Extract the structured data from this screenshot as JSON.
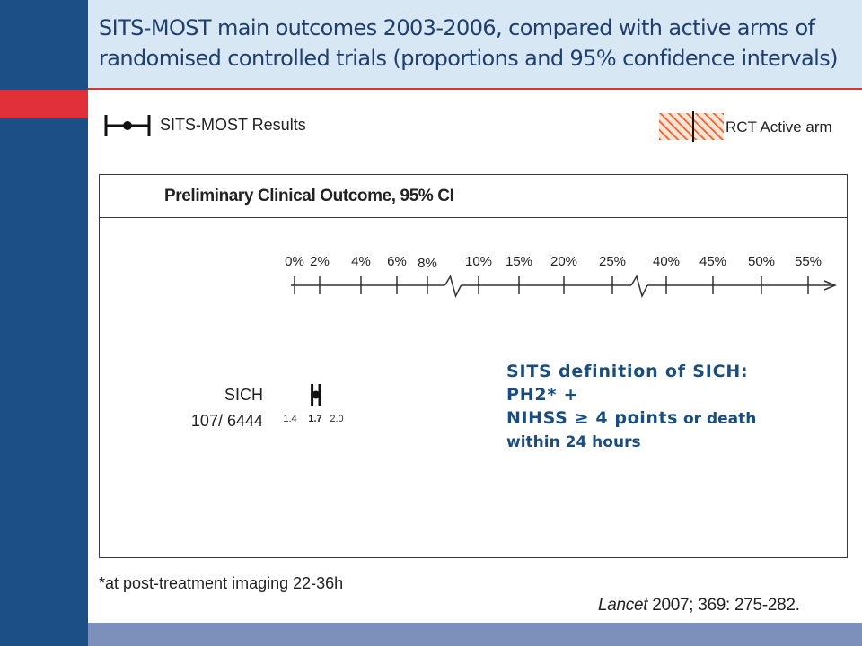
{
  "title": "SITS-MOST main outcomes 2003-2006, compared with active arms of randomised controlled trials (proportions and 95% confidence intervals)",
  "legend": {
    "sits_most": "SITS-MOST Results",
    "rct": "RCT Active arm"
  },
  "colors": {
    "sidebar": "#1c4f86",
    "accent_red": "#e2303a",
    "header_bg": "#d8e7f4",
    "bottom_bar": "#7c90bb",
    "definition_text": "#1a4d7f",
    "hatch_orange": "#e8622a"
  },
  "chart_data": {
    "type": "forest",
    "title": "Preliminary Clinical Outcome, 95% CI",
    "x_axis": {
      "ticks": [
        "0%",
        "2%",
        "4%",
        "6%",
        "8%",
        "10%",
        "15%",
        "20%",
        "25%",
        "40%",
        "45%",
        "50%",
        "55%"
      ],
      "tick_values": [
        0,
        2,
        4,
        6,
        8,
        10,
        15,
        20,
        25,
        40,
        45,
        50,
        55
      ],
      "breaks_between": [
        [
          8,
          10
        ],
        [
          25,
          40
        ]
      ]
    },
    "rows": [
      {
        "name": "SICH",
        "count": "107/ 6444",
        "estimate": 1.7,
        "ci_low": 1.4,
        "ci_high": 2.0,
        "estimate_label": "1.7",
        "ci_low_label": "1.4",
        "ci_high_label": "2.0"
      }
    ]
  },
  "definition": {
    "line1": "SITS definition of SICH:",
    "line2": "PH2* +",
    "line3_main": "NIHSS ≥ 4 points",
    "line3_small": " or death",
    "line4": "within 24 hours"
  },
  "footnote": "*at post-treatment imaging 22-36h",
  "citation": {
    "journal": "Lancet",
    "rest": " 2007; 369: 275-282."
  }
}
